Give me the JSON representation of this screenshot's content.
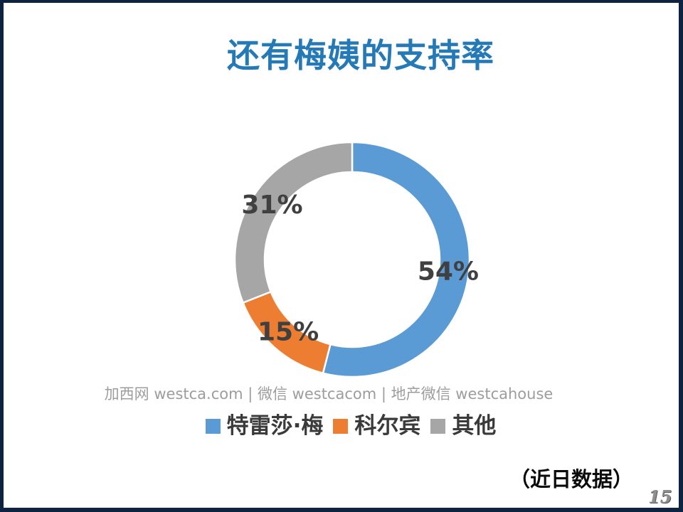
{
  "slide": {
    "title": "还有梅姨的支持率",
    "title_color": "#2479B7"
  },
  "chart_data": {
    "type": "pie",
    "subtype": "donut",
    "title": "",
    "start_angle_deg": 0,
    "direction": "clockwise",
    "legend_position": "bottom",
    "label_color": "#404040",
    "segments": [
      {
        "label": "特雷莎·梅",
        "value": 54,
        "display": "54%",
        "color": "#5B9BD5"
      },
      {
        "label": "科尔宾",
        "value": 15,
        "display": "15%",
        "color": "#ED7D31"
      },
      {
        "label": "其他",
        "value": 31,
        "display": "31%",
        "color": "#A6A6A6"
      }
    ]
  },
  "footer": {
    "watermark": "加西网 westca.com | 微信 westcacom | 地产微信 westcahouse",
    "note": "（近日数据）",
    "page_number": "15"
  },
  "frame_color": "#0D2340"
}
